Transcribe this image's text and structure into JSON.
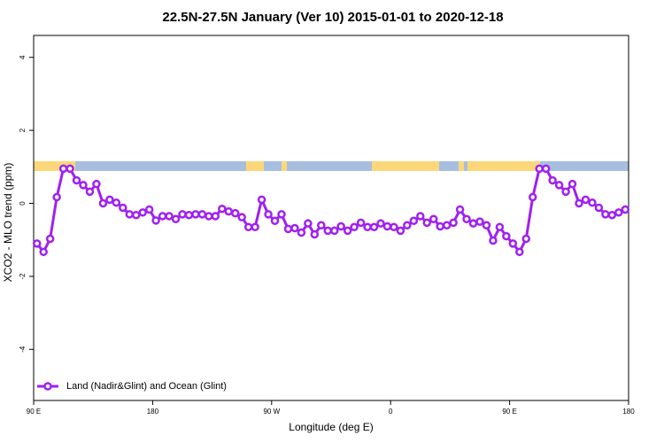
{
  "chart_data": {
    "type": "line",
    "title": "22.5N-27.5N January (Ver 10)   2015-01-01 to 2020-12-18",
    "x_label": "Longitude (deg E)",
    "y_label": "XCO2 - MLO trend (ppm)",
    "xlim": [
      90,
      540
    ],
    "ylim": [
      -5.4,
      4.6
    ],
    "xticks": [
      {
        "value": 90,
        "label": "90 E"
      },
      180,
      {
        "value": 270,
        "label": "90 W"
      },
      {
        "value": 360,
        "label": "0"
      },
      {
        "value": 450,
        "label": "90 E"
      },
      {
        "value": 540,
        "label": "180"
      }
    ],
    "yticks": [
      -4,
      -2,
      0,
      2,
      4
    ],
    "legend": "bottom-left",
    "series": [
      {
        "name": "Land (Nadir&Glint) and Ocean (Glint)",
        "color": "#a020f0",
        "x": [
          92.5,
          97.5,
          102.5,
          107.5,
          112.5,
          117.5,
          122.5,
          127.5,
          132.5,
          137.5,
          142.5,
          147.5,
          152.5,
          157.5,
          162.5,
          167.5,
          172.5,
          177.5,
          182.5,
          187.5,
          192.5,
          197.5,
          202.5,
          207.5,
          212.5,
          217.5,
          222.5,
          227.5,
          232.5,
          237.5,
          242.5,
          247.5,
          252.5,
          257.5,
          262.5,
          267.5,
          272.5,
          277.5,
          282.5,
          287.5,
          292.5,
          297.5,
          302.5,
          307.5,
          312.5,
          317.5,
          322.5,
          327.5,
          332.5,
          337.5,
          342.5,
          347.5,
          352.5,
          357.5,
          362.5,
          367.5,
          372.5,
          377.5,
          382.5,
          387.5,
          392.5,
          397.5,
          402.5,
          407.5,
          412.5,
          417.5,
          422.5,
          427.5,
          432.5,
          437.5,
          442.5,
          447.5,
          452.5,
          457.5,
          462.5,
          467.5,
          472.5,
          477.5,
          482.5,
          487.5,
          492.5,
          497.5,
          502.5,
          507.5,
          512.5,
          517.5,
          522.5,
          527.5,
          532.5,
          537.5
        ],
        "values": [
          -1.1,
          -1.33,
          -0.97,
          0.17,
          0.95,
          0.95,
          0.63,
          0.5,
          0.32,
          0.53,
          0,
          0.1,
          0.02,
          -0.12,
          -0.3,
          -0.32,
          -0.25,
          -0.17,
          -0.47,
          -0.35,
          -0.35,
          -0.43,
          -0.3,
          -0.32,
          -0.3,
          -0.3,
          -0.35,
          -0.35,
          -0.15,
          -0.22,
          -0.27,
          -0.38,
          -0.65,
          -0.65,
          0.1,
          -0.3,
          -0.48,
          -0.3,
          -0.7,
          -0.68,
          -0.8,
          -0.55,
          -0.85,
          -0.6,
          -0.75,
          -0.75,
          -0.63,
          -0.75,
          -0.65,
          -0.53,
          -0.65,
          -0.65,
          -0.55,
          -0.63,
          -0.65,
          -0.75,
          -0.6,
          -0.48,
          -0.35,
          -0.53,
          -0.43,
          -0.63,
          -0.6,
          -0.53,
          -0.17,
          -0.43,
          -0.55,
          -0.5,
          -0.6,
          -1.02,
          -0.65,
          -0.9,
          -1.1,
          -1.33,
          -0.97,
          0.17,
          0.95,
          0.95,
          0.63,
          0.5,
          0.32,
          0.53,
          0,
          0.1,
          0.02,
          -0.12,
          -0.3,
          -0.32,
          -0.25,
          -0.17
        ]
      }
    ]
  }
}
